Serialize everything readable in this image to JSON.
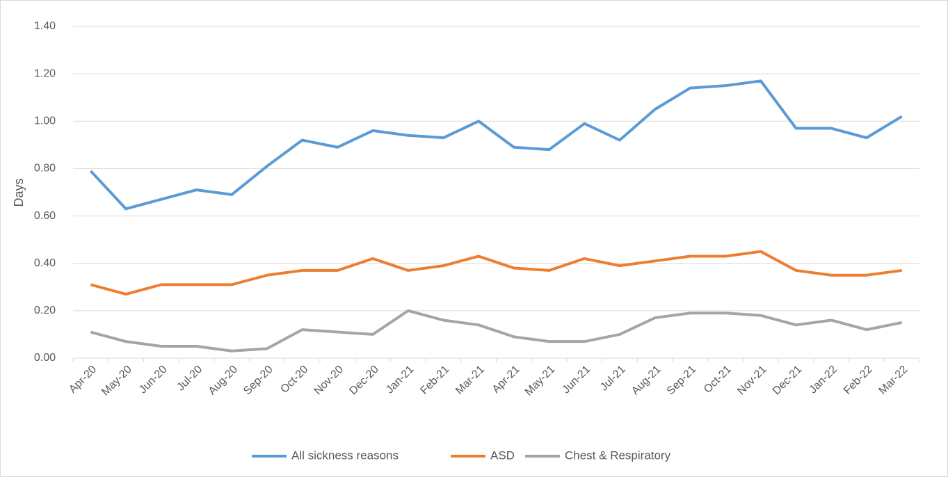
{
  "chart_data": {
    "type": "line",
    "y_label": "Days",
    "categories": [
      "Apr-20",
      "May-20",
      "Jun-20",
      "Jul-20",
      "Aug-20",
      "Sep-20",
      "Oct-20",
      "Nov-20",
      "Dec-20",
      "Jan-21",
      "Feb-21",
      "Mar-21",
      "Apr-21",
      "May-21",
      "Jun-21",
      "Jul-21",
      "Aug-21",
      "Sep-21",
      "Oct-21",
      "Nov-21",
      "Dec-21",
      "Jan-22",
      "Feb-22",
      "Mar-22"
    ],
    "series": [
      {
        "name": "All sickness reasons",
        "color": "#5b9bd5",
        "values": [
          0.79,
          0.63,
          0.67,
          0.71,
          0.69,
          0.81,
          0.92,
          0.89,
          0.96,
          0.94,
          0.93,
          1.0,
          0.89,
          0.88,
          0.99,
          0.92,
          1.05,
          1.14,
          1.15,
          1.17,
          0.97,
          0.97,
          0.93,
          1.02
        ]
      },
      {
        "name": "ASD",
        "color": "#ed7d31",
        "values": [
          0.31,
          0.27,
          0.31,
          0.31,
          0.31,
          0.35,
          0.37,
          0.37,
          0.42,
          0.37,
          0.39,
          0.43,
          0.38,
          0.37,
          0.42,
          0.39,
          0.41,
          0.43,
          0.43,
          0.45,
          0.37,
          0.35,
          0.35,
          0.37
        ]
      },
      {
        "name": "Chest & Respiratory",
        "color": "#a5a5a5",
        "values": [
          0.11,
          0.07,
          0.05,
          0.05,
          0.03,
          0.04,
          0.12,
          0.11,
          0.1,
          0.2,
          0.16,
          0.14,
          0.09,
          0.07,
          0.07,
          0.1,
          0.17,
          0.19,
          0.19,
          0.18,
          0.14,
          0.16,
          0.12,
          0.15
        ]
      }
    ],
    "ylim": [
      0,
      1.4
    ],
    "yticks": [
      {
        "value": 0,
        "label": "0.00"
      },
      {
        "value": 0.2,
        "label": "0.20"
      },
      {
        "value": 0.4,
        "label": "0.40"
      },
      {
        "value": 0.6,
        "label": "0.60"
      },
      {
        "value": 0.8,
        "label": "0.80"
      },
      {
        "value": 1,
        "label": "1.00"
      },
      {
        "value": 1.2,
        "label": "1.20"
      },
      {
        "value": 1.4,
        "label": "1.40"
      }
    ],
    "grid": true,
    "legend": "bottom"
  }
}
